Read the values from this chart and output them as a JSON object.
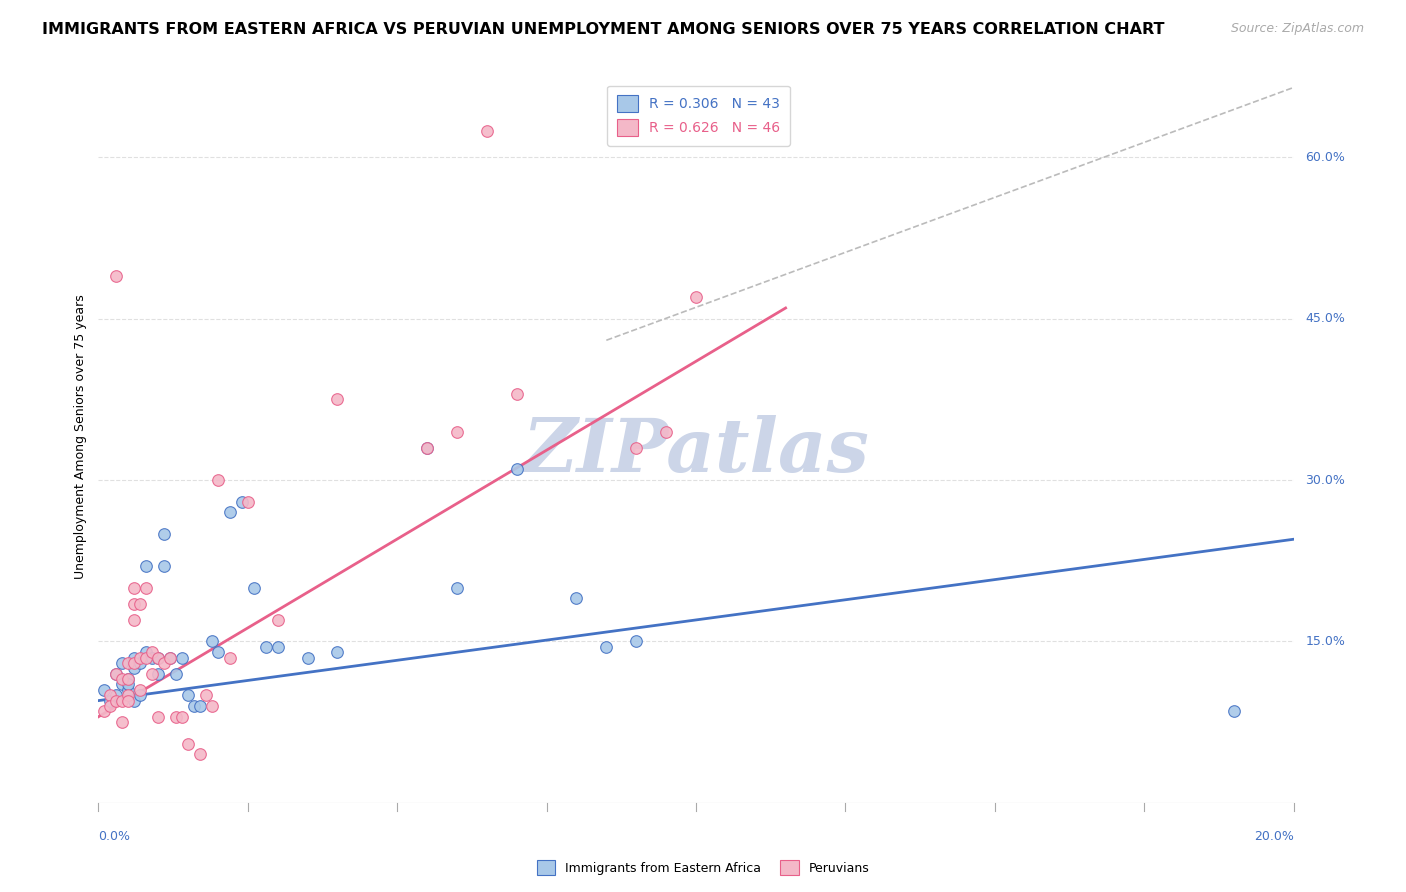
{
  "title": "IMMIGRANTS FROM EASTERN AFRICA VS PERUVIAN UNEMPLOYMENT AMONG SENIORS OVER 75 YEARS CORRELATION CHART",
  "source": "Source: ZipAtlas.com",
  "ylabel": "Unemployment Among Seniors over 75 years",
  "ytick_vals": [
    0.0,
    0.15,
    0.3,
    0.45,
    0.6
  ],
  "ytick_labels": [
    "",
    "15.0%",
    "30.0%",
    "45.0%",
    "60.0%"
  ],
  "xmin": 0.0,
  "xmax": 0.2,
  "ymin": 0.0,
  "ymax": 0.68,
  "color_blue": "#a8c8e8",
  "color_pink": "#f4b8c8",
  "color_blue_line": "#4472c4",
  "color_pink_line": "#e8608a",
  "color_dashed_line": "#bbbbbb",
  "watermark_color": "#ccd5e8",
  "blue_scatter_x": [
    0.001,
    0.002,
    0.003,
    0.003,
    0.004,
    0.004,
    0.005,
    0.005,
    0.005,
    0.006,
    0.006,
    0.006,
    0.007,
    0.007,
    0.008,
    0.008,
    0.009,
    0.01,
    0.01,
    0.011,
    0.011,
    0.012,
    0.013,
    0.014,
    0.015,
    0.016,
    0.017,
    0.019,
    0.02,
    0.022,
    0.024,
    0.026,
    0.028,
    0.03,
    0.035,
    0.04,
    0.055,
    0.06,
    0.07,
    0.08,
    0.085,
    0.09,
    0.19
  ],
  "blue_scatter_y": [
    0.105,
    0.095,
    0.12,
    0.1,
    0.11,
    0.13,
    0.115,
    0.105,
    0.11,
    0.135,
    0.125,
    0.095,
    0.13,
    0.1,
    0.14,
    0.22,
    0.135,
    0.135,
    0.12,
    0.25,
    0.22,
    0.135,
    0.12,
    0.135,
    0.1,
    0.09,
    0.09,
    0.15,
    0.14,
    0.27,
    0.28,
    0.2,
    0.145,
    0.145,
    0.135,
    0.14,
    0.33,
    0.2,
    0.31,
    0.19,
    0.145,
    0.15,
    0.085
  ],
  "pink_scatter_x": [
    0.001,
    0.002,
    0.002,
    0.003,
    0.003,
    0.004,
    0.004,
    0.004,
    0.005,
    0.005,
    0.005,
    0.005,
    0.006,
    0.006,
    0.006,
    0.006,
    0.007,
    0.007,
    0.007,
    0.008,
    0.008,
    0.009,
    0.009,
    0.01,
    0.01,
    0.011,
    0.012,
    0.013,
    0.014,
    0.015,
    0.017,
    0.018,
    0.019,
    0.02,
    0.022,
    0.025,
    0.03,
    0.04,
    0.055,
    0.06,
    0.065,
    0.07,
    0.09,
    0.095,
    0.1
  ],
  "pink_scatter_y": [
    0.085,
    0.1,
    0.09,
    0.12,
    0.095,
    0.115,
    0.095,
    0.075,
    0.1,
    0.095,
    0.115,
    0.13,
    0.2,
    0.185,
    0.17,
    0.13,
    0.185,
    0.135,
    0.105,
    0.135,
    0.2,
    0.14,
    0.12,
    0.135,
    0.08,
    0.13,
    0.135,
    0.08,
    0.08,
    0.055,
    0.045,
    0.1,
    0.09,
    0.3,
    0.135,
    0.28,
    0.17,
    0.375,
    0.33,
    0.345,
    0.625,
    0.38,
    0.33,
    0.345,
    0.47
  ],
  "pink_outlier_x": [
    0.003
  ],
  "pink_outlier_y": [
    0.49
  ],
  "blue_line_x": [
    0.0,
    0.2
  ],
  "blue_line_y": [
    0.095,
    0.245
  ],
  "pink_line_x": [
    0.0,
    0.115
  ],
  "pink_line_y": [
    0.08,
    0.46
  ],
  "dashed_line_x": [
    0.085,
    0.2
  ],
  "dashed_line_y": [
    0.43,
    0.665
  ],
  "grid_color": "#e0e0e0",
  "watermark_text": "ZIPatlas",
  "axis_label_color": "#4472c4",
  "title_fontsize": 11.5,
  "source_fontsize": 9,
  "label_fontsize": 9,
  "tick_fontsize": 9,
  "legend_fontsize": 10,
  "legend1_R": "R = 0.306",
  "legend1_N": "N = 43",
  "legend2_R": "R = 0.626",
  "legend2_N": "N = 46"
}
